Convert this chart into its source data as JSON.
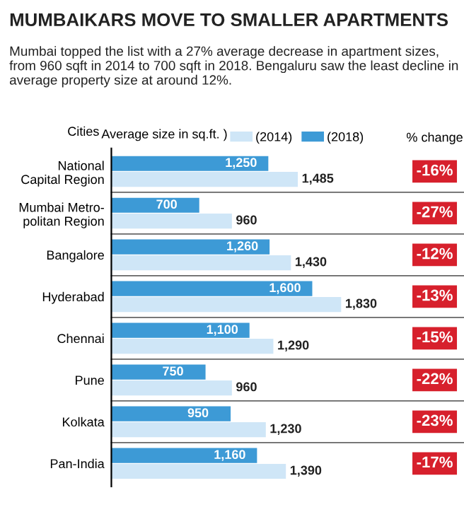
{
  "chart_data": {
    "type": "bar",
    "orientation": "horizontal",
    "title": "MUMBAIKARS MOVE TO SMALLER APARTMENTS",
    "subtitle": "Mumbai topped the list with a 27% average decrease in apartment sizes, from 960 sqft in 2014 to 700 sqft in 2018. Bengaluru saw the least decline in average property size at around 12%.",
    "ylabel": "Cities",
    "xlabel": "Average size in sq.ft. )",
    "categories": [
      "National\nCapital Region",
      "Mumbai Metro-\npolitan Region",
      "Bangalore",
      "Hyderabad",
      "Chennai",
      "Pune",
      "Kolkata",
      "Pan-India"
    ],
    "series": [
      {
        "name": "(2014)",
        "color": "#cfe6f7",
        "values": [
          1485,
          960,
          1430,
          1830,
          1290,
          960,
          1230,
          1390
        ],
        "value_labels": [
          "1,485",
          "960",
          "1,430",
          "1,830",
          "1,290",
          "960",
          "1,230",
          "1,390"
        ]
      },
      {
        "name": "(2018)",
        "color": "#3d9ad6",
        "values": [
          1250,
          700,
          1260,
          1600,
          1100,
          750,
          950,
          1160
        ],
        "value_labels": [
          "1,250",
          "700",
          "1,260",
          "1,600",
          "1,100",
          "750",
          "950",
          "1,160"
        ]
      }
    ],
    "annotations": [
      "% change",
      "-16%",
      "-27%",
      "-12%",
      "-13%",
      "-15%",
      "-22%",
      "-23%",
      "-17%"
    ],
    "legend": "top",
    "tick_labels": "y",
    "grid": false
  }
}
